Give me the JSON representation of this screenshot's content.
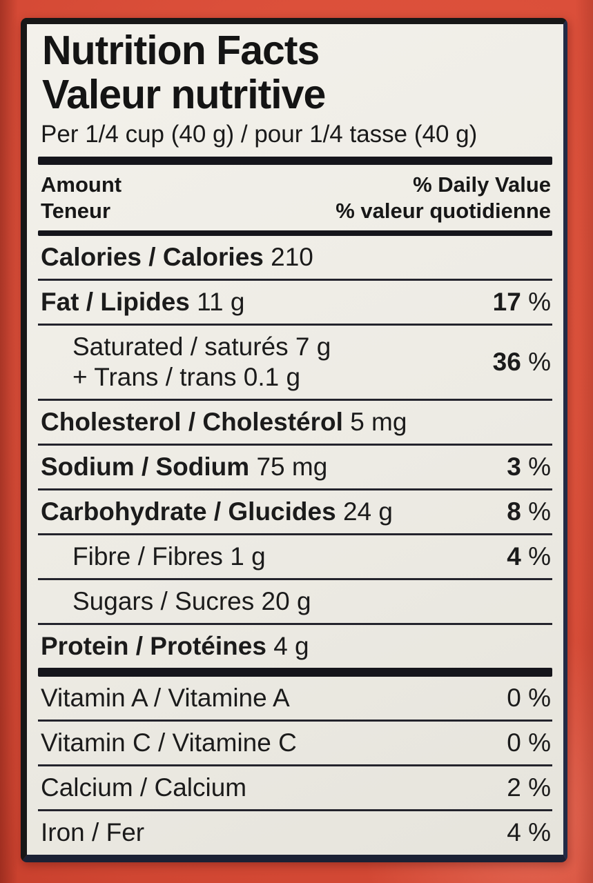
{
  "package": {
    "background_color": "#d94f3a"
  },
  "label": {
    "background_color": "#edebe4",
    "border_color": "#171717",
    "text_color": "#1b1b1b",
    "title_en": "Nutrition Facts",
    "title_fr": "Valeur nutritive",
    "serving_statement": "Per 1/4 cup (40 g) / pour 1/4 tasse (40 g)",
    "columns": {
      "amount_en": "Amount",
      "amount_fr": "Teneur",
      "daily_value_en": "% Daily Value",
      "daily_value_fr": "% valeur quotidienne"
    },
    "nutrients": [
      {
        "id": "calories",
        "name": "Calories / Calories",
        "amount": "210",
        "dv": "",
        "bold": true,
        "dv_bold": false,
        "indent": false
      },
      {
        "id": "fat",
        "name": "Fat / Lipides",
        "amount": "11 g",
        "dv": "17 %",
        "bold": true,
        "dv_bold": true,
        "indent": false
      },
      {
        "id": "saturated-trans",
        "lines": [
          "Saturated / saturés 7 g",
          "+ Trans / trans 0.1 g"
        ],
        "dv": "36 %",
        "bold": false,
        "dv_bold": true,
        "indent": true
      },
      {
        "id": "cholesterol",
        "name": "Cholesterol / Cholestérol",
        "amount": "5 mg",
        "dv": "",
        "bold": true,
        "dv_bold": false,
        "indent": false
      },
      {
        "id": "sodium",
        "name": "Sodium / Sodium",
        "amount": "75 mg",
        "dv": "3 %",
        "bold": true,
        "dv_bold": true,
        "indent": false
      },
      {
        "id": "carbohydrate",
        "name": "Carbohydrate / Glucides",
        "amount": "24 g",
        "dv": "8 %",
        "bold": true,
        "dv_bold": true,
        "indent": false
      },
      {
        "id": "fibre",
        "name": "Fibre / Fibres",
        "amount": "1 g",
        "dv": "4 %",
        "bold": false,
        "dv_bold": true,
        "indent": true
      },
      {
        "id": "sugars",
        "name": "Sugars / Sucres",
        "amount": "20 g",
        "dv": "",
        "bold": false,
        "dv_bold": false,
        "indent": true
      },
      {
        "id": "protein",
        "name": "Protein / Protéines",
        "amount": "4 g",
        "dv": "",
        "bold": true,
        "dv_bold": false,
        "indent": false
      }
    ],
    "micronutrients": [
      {
        "id": "vitamin-a",
        "name": "Vitamin A / Vitamine A",
        "dv": "0 %"
      },
      {
        "id": "vitamin-c",
        "name": "Vitamin C / Vitamine C",
        "dv": "0 %"
      },
      {
        "id": "calcium",
        "name": "Calcium / Calcium",
        "dv": "2 %"
      },
      {
        "id": "iron",
        "name": "Iron / Fer",
        "dv": "4 %"
      }
    ]
  }
}
